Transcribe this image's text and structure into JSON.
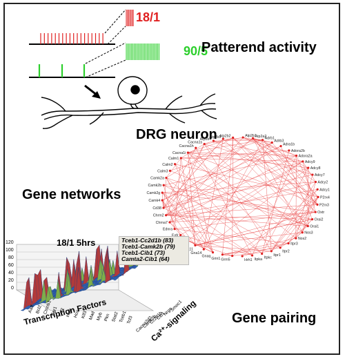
{
  "titles": {
    "patterned_activity": "Patterend activity",
    "drg_neuron": "DRG neuron",
    "gene_networks": "Gene networks",
    "gene_pairing": "Gene pairing"
  },
  "stimulation": {
    "pattern1_label": "18/1",
    "pattern1_color": "#e02020",
    "pattern2_label": "90/5",
    "pattern2_color": "#2ccf2c"
  },
  "network": {
    "edge_color": "#e83a3a",
    "node_color": "#e02020",
    "genes": [
      "Atp2b3",
      "Atp2b2",
      "Atp2b1",
      "Atp2a2",
      "Adrb1",
      "Adrb3",
      "Adra1b",
      "Adora2b",
      "Adora2a",
      "Adcy9",
      "Adcy8",
      "Adcy7",
      "Adcy2",
      "Adcy1",
      "P2rx4",
      "P2rx3",
      "Oxtr",
      "Orai2",
      "Orai1",
      "Nos3",
      "Nos2",
      "Itpr3",
      "Itpr2",
      "Itpr1",
      "Itpkc",
      "Itpka",
      "Hrh1",
      "Grm5",
      "Grin1",
      "Gnaq",
      "Gna14",
      "Gna11",
      "F2r",
      "Egfr",
      "Ednra",
      "Chrna7",
      "Chrm2",
      "Cd38",
      "Camk4",
      "Camk2g",
      "Camk2b",
      "Camk2a",
      "Calm3",
      "Calm2",
      "Calm1",
      "Cacna1i",
      "Cacna1h",
      "Cacna1s",
      "Atp2b4"
    ]
  },
  "chart3d": {
    "time_label": "18/1 5hrs",
    "pairs": [
      "Tceb1-Cc2d1b (83)",
      "Tceb1-Camk2b (79)",
      "Tceb1-Cib1 (73)",
      "Camta2-Cib1 (64)"
    ],
    "y_ticks": [
      "120",
      "100",
      "80",
      "60",
      "40",
      "20",
      "0"
    ],
    "x_genes": [
      "Aatf",
      "Bcl2",
      "Ctnnb1",
      "Egr1",
      "Gtf2",
      "Hipk",
      "Hox",
      "Klf3",
      "Mad",
      "Myb",
      "Pkn",
      "Stat2",
      "Tceb1",
      "Tcf3"
    ],
    "ca_genes": [
      "Cacna2d2",
      "Camk2b",
      "Cc2d1b",
      "Cib1",
      "Nrgn",
      "Smoc1"
    ],
    "xlabel_tf": "Transcription Factors",
    "xlabel_ca": "Ca²⁺-signaling"
  }
}
